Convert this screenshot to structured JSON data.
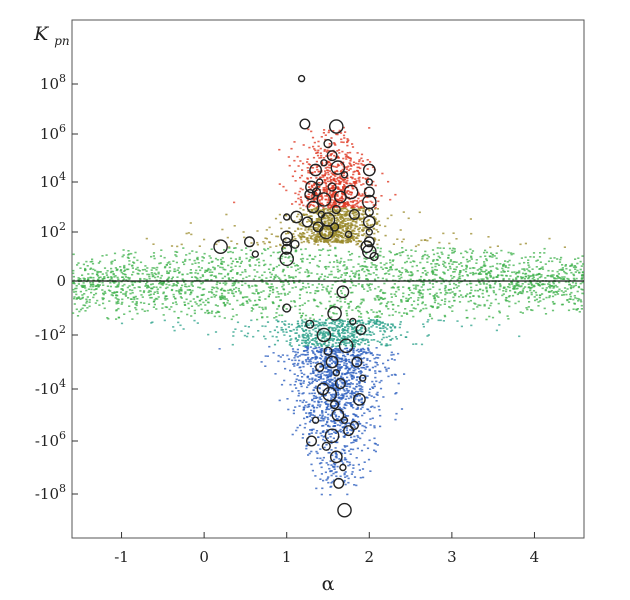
{
  "chart_data": {
    "type": "scatter",
    "title": "",
    "xlabel": "α",
    "ylabel_main": "K",
    "ylabel_sub": "pn",
    "xlim": [
      -1.6,
      4.6
    ],
    "ylim": [
      -10,
      10
    ],
    "y_scale": "symlog (base 10)",
    "grid": false,
    "legend": "none",
    "x_ticks": [
      {
        "value": -1,
        "label": "-1"
      },
      {
        "value": 0,
        "label": "0"
      },
      {
        "value": 1,
        "label": "1"
      },
      {
        "value": 2,
        "label": "2"
      },
      {
        "value": 3,
        "label": "3"
      },
      {
        "value": 4,
        "label": "4"
      }
    ],
    "y_ticks": [
      {
        "value": 8,
        "base": "10",
        "exp": "8"
      },
      {
        "value": 6,
        "base": "10",
        "exp": "6"
      },
      {
        "value": 4,
        "base": "10",
        "exp": "4"
      },
      {
        "value": 2,
        "base": "10",
        "exp": "2"
      },
      {
        "value": 0,
        "base": "0",
        "exp": ""
      },
      {
        "value": -2,
        "base": "-10",
        "exp": "2"
      },
      {
        "value": -4,
        "base": "-10",
        "exp": "4"
      },
      {
        "value": -6,
        "base": "-10",
        "exp": "6"
      },
      {
        "value": -8,
        "base": "-10",
        "exp": "8"
      }
    ],
    "zero_line": 0,
    "colors": {
      "high_positive": "#e03a24",
      "mid_positive": "#9a8a2a",
      "near_zero": "#3cb04a",
      "mid_negative": "#2aa08a",
      "high_negative": "#2d5fbf",
      "markers": "#222222"
    },
    "series": [
      {
        "marker": "open circle",
        "points": [
          {
            "x": 1.18,
            "y": 8.2
          },
          {
            "x": 1.22,
            "y": 6.4
          },
          {
            "x": 1.6,
            "y": 6.3
          },
          {
            "x": 1.5,
            "y": 5.6
          },
          {
            "x": 1.35,
            "y": 4.5
          },
          {
            "x": 1.4,
            "y": 4.0
          },
          {
            "x": 1.28,
            "y": 3.5
          },
          {
            "x": 1.45,
            "y": 3.3
          },
          {
            "x": 1.55,
            "y": 3.8
          },
          {
            "x": 1.32,
            "y": 3.0
          },
          {
            "x": 1.42,
            "y": 2.7
          },
          {
            "x": 1.25,
            "y": 2.4
          },
          {
            "x": 1.5,
            "y": 2.5
          },
          {
            "x": 1.6,
            "y": 2.9
          },
          {
            "x": 1.65,
            "y": 3.4
          },
          {
            "x": 1.7,
            "y": 4.3
          },
          {
            "x": 1.38,
            "y": 2.2
          },
          {
            "x": 1.48,
            "y": 2.0
          },
          {
            "x": 1.58,
            "y": 2.2
          },
          {
            "x": 1.3,
            "y": 3.8
          },
          {
            "x": 1.45,
            "y": 4.8
          },
          {
            "x": 1.55,
            "y": 5.1
          },
          {
            "x": 1.62,
            "y": 4.6
          },
          {
            "x": 1.36,
            "y": 3.6
          },
          {
            "x": 1.0,
            "y": 1.8
          },
          {
            "x": 1.0,
            "y": 2.6
          },
          {
            "x": 1.0,
            "y": 1.3
          },
          {
            "x": 1.0,
            "y": 0.9
          },
          {
            "x": 1.0,
            "y": 1.6
          },
          {
            "x": 2.0,
            "y": 4.5
          },
          {
            "x": 2.0,
            "y": 4.0
          },
          {
            "x": 2.0,
            "y": 3.6
          },
          {
            "x": 2.0,
            "y": 3.2
          },
          {
            "x": 2.0,
            "y": 2.8
          },
          {
            "x": 2.0,
            "y": 2.4
          },
          {
            "x": 2.0,
            "y": 2.0
          },
          {
            "x": 2.0,
            "y": 1.6
          },
          {
            "x": 2.0,
            "y": 1.2
          },
          {
            "x": 2.06,
            "y": 1.0
          },
          {
            "x": 1.97,
            "y": 1.4
          },
          {
            "x": 0.62,
            "y": 1.1
          },
          {
            "x": 0.55,
            "y": 1.6
          },
          {
            "x": 0.2,
            "y": 1.4
          },
          {
            "x": 1.1,
            "y": 1.5
          },
          {
            "x": 1.12,
            "y": 2.6
          },
          {
            "x": 1.75,
            "y": 1.9
          },
          {
            "x": 1.82,
            "y": 2.7
          },
          {
            "x": 1.78,
            "y": 3.6
          },
          {
            "x": 1.0,
            "y": -1.0
          },
          {
            "x": 1.68,
            "y": -0.4
          },
          {
            "x": 1.8,
            "y": -1.5
          },
          {
            "x": 1.9,
            "y": -1.8
          },
          {
            "x": 1.45,
            "y": -2.0
          },
          {
            "x": 1.5,
            "y": -2.6
          },
          {
            "x": 1.55,
            "y": -3.0
          },
          {
            "x": 1.6,
            "y": -3.4
          },
          {
            "x": 1.65,
            "y": -3.8
          },
          {
            "x": 1.52,
            "y": -4.2
          },
          {
            "x": 1.58,
            "y": -4.6
          },
          {
            "x": 1.62,
            "y": -5.0
          },
          {
            "x": 1.7,
            "y": -5.2
          },
          {
            "x": 1.75,
            "y": -5.6
          },
          {
            "x": 1.55,
            "y": -5.8
          },
          {
            "x": 1.48,
            "y": -6.2
          },
          {
            "x": 1.6,
            "y": -6.6
          },
          {
            "x": 1.68,
            "y": -7.0
          },
          {
            "x": 1.63,
            "y": -7.6
          },
          {
            "x": 1.7,
            "y": -8.6
          },
          {
            "x": 1.82,
            "y": -5.4
          },
          {
            "x": 1.88,
            "y": -4.4
          },
          {
            "x": 1.92,
            "y": -3.6
          },
          {
            "x": 1.85,
            "y": -3.0
          },
          {
            "x": 1.72,
            "y": -2.4
          },
          {
            "x": 1.4,
            "y": -3.2
          },
          {
            "x": 1.44,
            "y": -4.0
          },
          {
            "x": 1.35,
            "y": -5.2
          },
          {
            "x": 1.3,
            "y": -6.0
          },
          {
            "x": 1.58,
            "y": -1.2
          },
          {
            "x": 1.28,
            "y": -1.6
          }
        ]
      }
    ]
  }
}
